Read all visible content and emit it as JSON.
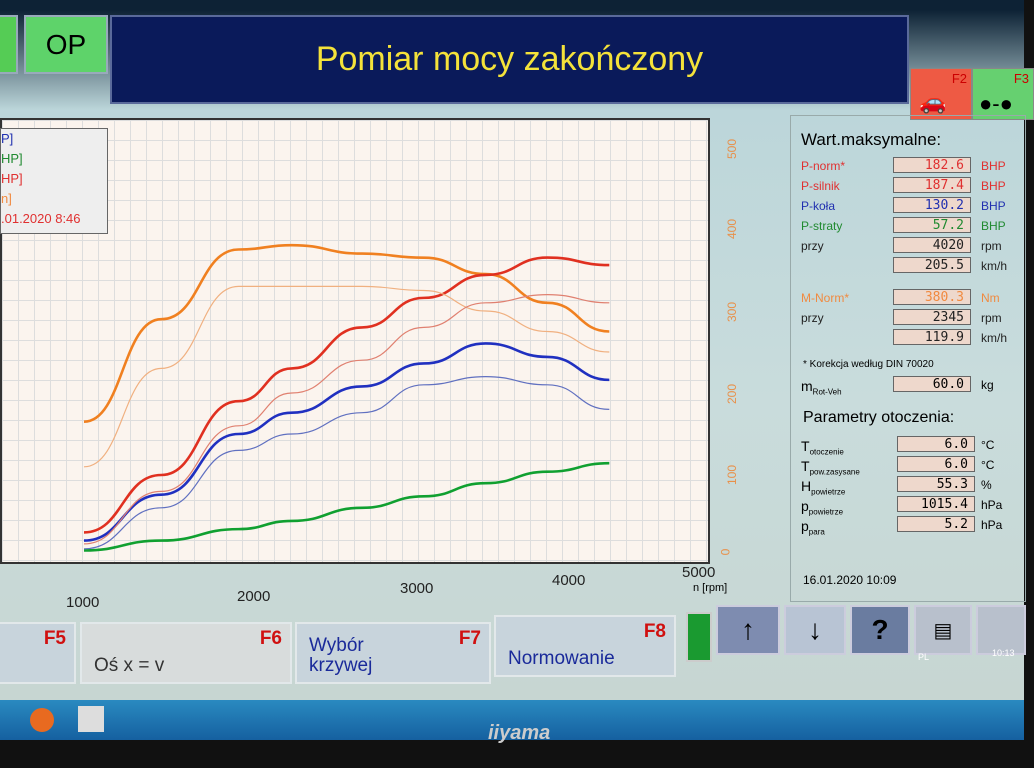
{
  "header": {
    "left_button": "OP",
    "title": "Pomiar mocy zakończony",
    "f2": "F2",
    "f3": "F3"
  },
  "legend": {
    "items": [
      "P]",
      "HP]",
      "HP]",
      "n]"
    ],
    "date": ".01.2020 8:46"
  },
  "chart_data": {
    "type": "line",
    "xlabel": "n [rpm]",
    "x_ticks": [
      "1000",
      "2000",
      "3000",
      "4000",
      "5000"
    ],
    "y_ticks_right": [
      "0",
      "100",
      "200",
      "300",
      "400",
      "500"
    ],
    "xlim": [
      1000,
      5000
    ],
    "ylim_right": [
      0,
      500
    ],
    "ylim_power_hidden": [
      0,
      250
    ],
    "grid": true,
    "x": [
      1000,
      1500,
      2000,
      2345,
      2800,
      3200,
      3600,
      4000,
      4400
    ],
    "series": [
      {
        "axis": "right",
        "color": "#f08020",
        "width": "thick",
        "values": [
          165,
          290,
          375,
          380.3,
          370,
          365,
          345,
          310,
          275
        ]
      },
      {
        "axis": "power",
        "color": "#e03020",
        "width": "thick",
        "values": [
          15,
          50,
          95,
          115,
          140,
          158,
          172,
          182.6,
          178
        ]
      },
      {
        "axis": "power",
        "color": "#2030c0",
        "width": "thick",
        "values": [
          10,
          38,
          75,
          88,
          104,
          118,
          130.2,
          122,
          108
        ]
      },
      {
        "axis": "power",
        "color": "#10a030",
        "width": "thick",
        "values": [
          4,
          10,
          17,
          22,
          30,
          37,
          45,
          52,
          57.2
        ]
      },
      {
        "axis": "right",
        "color": "#f0b080",
        "width": "thin",
        "values": [
          110,
          230,
          330,
          330,
          330,
          325,
          300,
          275,
          250
        ]
      },
      {
        "axis": "power",
        "color": "#e08070",
        "width": "thin",
        "values": [
          8,
          40,
          80,
          100,
          120,
          140,
          155,
          160,
          155
        ]
      },
      {
        "axis": "power",
        "color": "#6070c0",
        "width": "thin",
        "values": [
          5,
          30,
          65,
          75,
          88,
          105,
          110,
          105,
          90
        ]
      }
    ]
  },
  "right": {
    "title": "Wart.maksymalne:",
    "rows": [
      {
        "label": "P-norm*",
        "value": "182.6",
        "unit": "BHP",
        "color": "#e03030"
      },
      {
        "label": "P-silnik",
        "value": "187.4",
        "unit": "BHP",
        "color": "#e03030"
      },
      {
        "label": "P-koła",
        "value": "130.2",
        "unit": "BHP",
        "color": "#2030b0"
      },
      {
        "label": "P-straty",
        "value": "57.2",
        "unit": "BHP",
        "color": "#208a30"
      },
      {
        "label": "przy",
        "value": "4020",
        "unit": "rpm",
        "color": "#222"
      },
      {
        "label": "",
        "value": "205.5",
        "unit": "km/h",
        "color": "#222"
      },
      {
        "label": "M-Norm*",
        "value": "380.3",
        "unit": "Nm",
        "color": "#f08a40"
      },
      {
        "label": "przy",
        "value": "2345",
        "unit": "rpm",
        "color": "#222"
      },
      {
        "label": "",
        "value": "119.9",
        "unit": "km/h",
        "color": "#222"
      }
    ],
    "correction": "* Korekcja według DIN 70020",
    "mass": {
      "label": "m",
      "sub": "Rot-Veh",
      "value": "60.0",
      "unit": "kg"
    },
    "env_title": "Parametry otoczenia:",
    "env": [
      {
        "label": "T",
        "sub": "otoczenie",
        "value": "6.0",
        "unit": "°C"
      },
      {
        "label": "T",
        "sub": "pow.zasysane",
        "value": "6.0",
        "unit": "°C"
      },
      {
        "label": "H",
        "sub": "powietrze",
        "value": "55.3",
        "unit": "%"
      },
      {
        "label": "p",
        "sub": "powietrze",
        "value": "1015.4",
        "unit": "hPa"
      },
      {
        "label": "p",
        "sub": "para",
        "value": "5.2",
        "unit": "hPa"
      }
    ],
    "datetime": "16.01.2020  10:09"
  },
  "bottom": {
    "f5": "F5",
    "f6": "F6",
    "f6_label": "Oś x = v",
    "f7": "F7",
    "f7_label": "Wybór krzywej",
    "f8": "F8",
    "f8_label": "Normowanie",
    "up": "↑",
    "down": "↓",
    "help": "?"
  },
  "taskbar": {
    "lang": "PL",
    "time": "10:13"
  },
  "monitor": {
    "brand": "iiyama"
  }
}
